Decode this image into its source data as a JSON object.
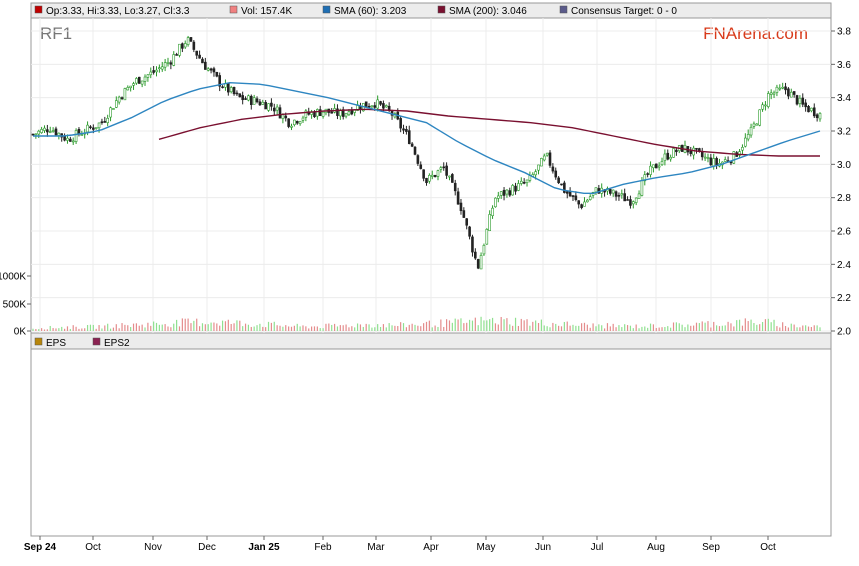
{
  "legend": [
    {
      "label": "Op:3.33, Hi:3.33, Lo:3.27, Cl:3.3",
      "color": "#c00000"
    },
    {
      "label": "Vol: 157.4K",
      "color": "#f08080"
    },
    {
      "label": "SMA (60): 3.203",
      "color": "#1f6fb4"
    },
    {
      "label": "SMA (200): 3.046",
      "color": "#7a1030"
    },
    {
      "label": "Consensus Target: 0 - 0",
      "color": "#5a5a8a"
    }
  ],
  "ticker": "RF1",
  "brand": "FNArena.com",
  "lower_legend": [
    {
      "label": "EPS",
      "color": "#b8860b"
    },
    {
      "label": "EPS2",
      "color": "#8b2252"
    }
  ],
  "chart_data": {
    "type": "candlestick",
    "price_axis": {
      "min": 2.0,
      "max": 3.8,
      "ticks": [
        "3.8",
        "3.6",
        "3.4",
        "3.2",
        "3.0",
        "2.8",
        "2.6",
        "2.4",
        "2.2",
        "2.0"
      ]
    },
    "volume_axis": {
      "ticks": [
        "1000K",
        "500K",
        "0K"
      ]
    },
    "x_ticks": [
      {
        "label": "Sep 24",
        "bold": true
      },
      {
        "label": "Oct",
        "bold": false
      },
      {
        "label": "Nov",
        "bold": false
      },
      {
        "label": "Dec",
        "bold": false
      },
      {
        "label": "Jan 25",
        "bold": true
      },
      {
        "label": "Feb",
        "bold": false
      },
      {
        "label": "Mar",
        "bold": false
      },
      {
        "label": "Apr",
        "bold": false
      },
      {
        "label": "May",
        "bold": false
      },
      {
        "label": "Jun",
        "bold": false
      },
      {
        "label": "Jul",
        "bold": false
      },
      {
        "label": "Aug",
        "bold": false
      },
      {
        "label": "Sep",
        "bold": false
      },
      {
        "label": "Oct",
        "bold": false
      }
    ],
    "close_path": [
      3.18,
      3.22,
      3.15,
      3.2,
      3.25,
      3.4,
      3.5,
      3.55,
      3.62,
      3.75,
      3.6,
      3.48,
      3.4,
      3.38,
      3.35,
      3.25,
      3.3,
      3.32,
      3.3,
      3.35,
      3.37,
      3.3,
      3.15,
      2.9,
      2.98,
      2.75,
      2.38,
      2.8,
      2.85,
      2.9,
      3.05,
      2.85,
      2.75,
      2.85,
      2.82,
      2.78,
      2.95,
      3.05,
      3.1,
      3.05,
      3.0,
      3.05,
      3.2,
      3.42,
      3.45,
      3.35,
      3.3
    ],
    "sma60_path": [
      3.17,
      3.17,
      3.2,
      3.28,
      3.38,
      3.45,
      3.49,
      3.48,
      3.44,
      3.4,
      3.35,
      3.3,
      3.25,
      3.13,
      3.03,
      2.95,
      2.85,
      2.82,
      2.88,
      2.92,
      2.95,
      3.0,
      3.07,
      3.14,
      3.2
    ],
    "sma200_path": [
      3.15,
      3.22,
      3.27,
      3.3,
      3.32,
      3.33,
      3.32,
      3.29,
      3.27,
      3.25,
      3.22,
      3.17,
      3.12,
      3.08,
      3.06,
      3.05,
      3.05
    ],
    "volume_path": [
      60,
      80,
      90,
      120,
      150,
      180,
      200,
      160,
      130,
      90,
      110,
      140,
      120,
      150,
      180,
      220,
      210,
      160,
      130,
      110,
      100,
      120,
      150,
      170,
      200,
      120,
      100
    ]
  }
}
